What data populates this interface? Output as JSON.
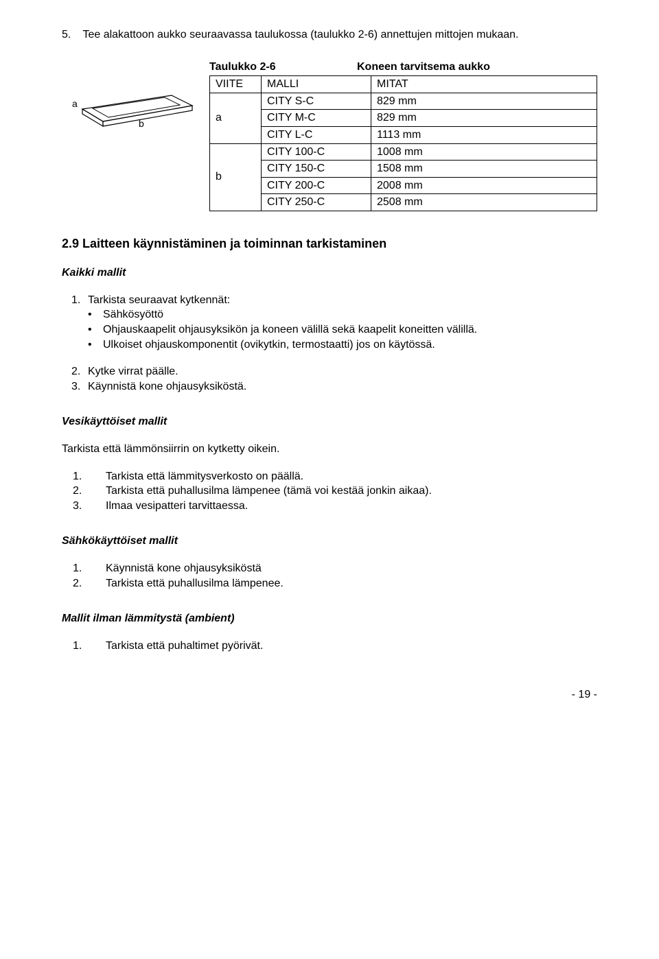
{
  "intro": {
    "num": "5.",
    "text": "Tee alakattoon aukko seuraavassa taulukossa (taulukko 2-6) annettujen mittojen mukaan."
  },
  "diagram": {
    "label_a": "a",
    "label_b": "b"
  },
  "table": {
    "caption_left": "Taulukko 2-6",
    "caption_right": "Koneen tarvitsema aukko",
    "headers": {
      "viite": "VIITE",
      "malli": "MALLI",
      "mitat": "MITAT"
    },
    "groups": [
      {
        "viite": "a",
        "rows": [
          {
            "malli": "CITY S-C",
            "mitat": "829 mm"
          },
          {
            "malli": "CITY M-C",
            "mitat": "829 mm"
          },
          {
            "malli": "CITY L-C",
            "mitat": "1113 mm"
          }
        ]
      },
      {
        "viite": "b",
        "rows": [
          {
            "malli": "CITY 100-C",
            "mitat": "1008 mm"
          },
          {
            "malli": "CITY 150-C",
            "mitat": "1508 mm"
          },
          {
            "malli": "CITY 200-C",
            "mitat": "2008 mm"
          },
          {
            "malli": "CITY 250-C",
            "mitat": "2508 mm"
          }
        ]
      }
    ]
  },
  "section29": {
    "heading": "2.9 Laitteen käynnistäminen ja toiminnan tarkistaminen",
    "kaikki_mallit": {
      "title": "Kaikki mallit",
      "item1_num": "1.",
      "item1_text": "Tarkista seuraavat kytkennät:",
      "bullets": [
        "Sähkösyöttö",
        "Ohjauskaapelit ohjausyksikön ja koneen välillä sekä kaapelit koneitten välillä.",
        "Ulkoiset ohjauskomponentit (ovikytkin, termostaatti) jos on käytössä."
      ],
      "item2_num": "2.",
      "item2_text": "Kytke virrat päälle.",
      "item3_num": "3.",
      "item3_text": "Käynnistä kone ohjausyksiköstä."
    },
    "vesi": {
      "title": "Vesikäyttöiset mallit",
      "intro": "Tarkista että lämmönsiirrin on kytketty oikein.",
      "items": [
        {
          "n": "1.",
          "t": "Tarkista että lämmitysverkosto on päällä."
        },
        {
          "n": "2.",
          "t": "Tarkista että puhallusilma lämpenee (tämä voi kestää jonkin aikaa)."
        },
        {
          "n": "3.",
          "t": "Ilmaa vesipatteri tarvittaessa."
        }
      ]
    },
    "sahko": {
      "title": "Sähkökäyttöiset mallit",
      "items": [
        {
          "n": "1.",
          "t": "Käynnistä kone ohjausyksiköstä"
        },
        {
          "n": "2.",
          "t": "Tarkista että puhallusilma lämpenee."
        }
      ]
    },
    "ambient": {
      "title": "Mallit ilman lämmitystä (ambient)",
      "items": [
        {
          "n": "1.",
          "t": "Tarkista että puhaltimet pyörivät."
        }
      ]
    }
  },
  "page_number": "- 19 -"
}
